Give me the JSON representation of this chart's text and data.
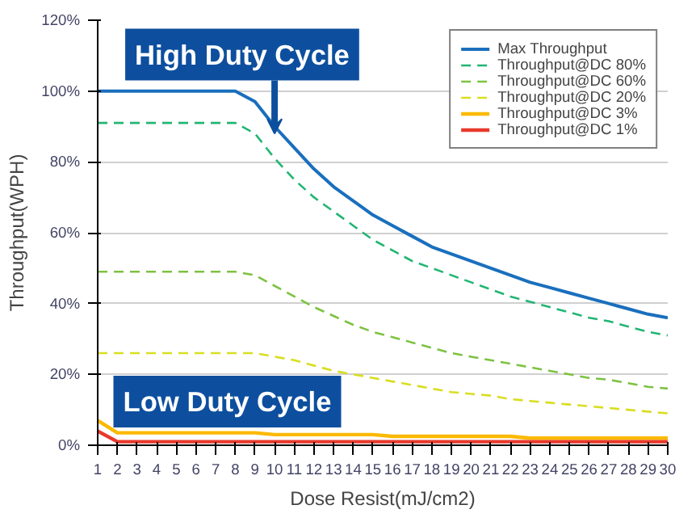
{
  "chart_data": {
    "type": "line",
    "xlabel": "Dose Resist(mJ/cm2)",
    "ylabel": "Throughput(WPH)",
    "x": [
      1,
      2,
      3,
      4,
      5,
      6,
      7,
      8,
      9,
      10,
      11,
      12,
      13,
      14,
      15,
      16,
      17,
      18,
      19,
      20,
      21,
      22,
      23,
      24,
      25,
      26,
      27,
      28,
      29,
      30
    ],
    "xlim": [
      1,
      30
    ],
    "xticks": [
      1,
      2,
      3,
      4,
      5,
      6,
      7,
      8,
      9,
      10,
      11,
      12,
      13,
      14,
      15,
      16,
      17,
      18,
      19,
      20,
      21,
      22,
      23,
      24,
      25,
      26,
      27,
      28,
      29,
      30
    ],
    "ylim": [
      0,
      120
    ],
    "yticks": [
      {
        "value": 0,
        "label": "0%"
      },
      {
        "value": 20,
        "label": "20%"
      },
      {
        "value": 40,
        "label": "40%"
      },
      {
        "value": 60,
        "label": "60%"
      },
      {
        "value": 80,
        "label": "80%"
      },
      {
        "value": 100,
        "label": "100%"
      },
      {
        "value": 120,
        "label": "120%"
      }
    ],
    "grid": "y",
    "legend": "top right",
    "marker": "none",
    "series": [
      {
        "name": "Max Throughput",
        "color": "#1a6fbd",
        "line_style": "solid",
        "values": [
          100,
          100,
          100,
          100,
          100,
          100,
          100,
          100,
          97,
          90,
          84,
          78,
          73,
          69,
          65,
          62,
          59,
          56,
          54,
          52,
          50,
          48,
          46,
          44.5,
          43,
          41.5,
          40,
          38.5,
          37,
          36
        ]
      },
      {
        "name": "Throughput@DC 80%",
        "color": "#22b573",
        "line_style": "dashed",
        "values": [
          91,
          91,
          91,
          91,
          91,
          91,
          91,
          91,
          88,
          81,
          75,
          70,
          66,
          62,
          58,
          55,
          52,
          50,
          48,
          46,
          44,
          42,
          40.5,
          39,
          37.5,
          36,
          35,
          33.5,
          32,
          31
        ]
      },
      {
        "name": "Throughput@DC 60%",
        "color": "#7dc242",
        "line_style": "dashed",
        "values": [
          49,
          49,
          49,
          49,
          49,
          49,
          49,
          49,
          48,
          45,
          42,
          39,
          36.5,
          34,
          32,
          30.5,
          29,
          27.5,
          26,
          25,
          24,
          23,
          22,
          21,
          20,
          19,
          18.5,
          17.5,
          16.5,
          16
        ]
      },
      {
        "name": "Throughput@DC 20%",
        "color": "#d8de1f",
        "line_style": "dashed",
        "values": [
          26,
          26,
          26,
          26,
          26,
          26,
          26,
          26,
          26,
          25,
          24,
          22.5,
          21,
          20,
          19,
          18,
          17,
          16,
          15,
          14.5,
          14,
          13,
          12.5,
          12,
          11.5,
          11,
          10.5,
          10,
          9.5,
          9
        ]
      },
      {
        "name": "Throughput@DC 3%",
        "color": "#fbb900",
        "line_style": "solid",
        "values": [
          7,
          3.5,
          3.5,
          3.5,
          3.5,
          3.5,
          3.5,
          3.5,
          3.5,
          3,
          3,
          3,
          3,
          3,
          3,
          2.5,
          2.5,
          2.5,
          2.5,
          2.5,
          2.5,
          2.5,
          2,
          2,
          2,
          2,
          2,
          2,
          2,
          2
        ]
      },
      {
        "name": "Throughput@DC 1%",
        "color": "#e8392b",
        "line_style": "solid",
        "values": [
          4,
          1,
          1,
          1,
          1,
          1,
          1,
          1,
          1,
          1,
          1,
          1,
          1,
          1,
          1,
          1,
          1,
          1,
          1,
          1,
          1,
          1,
          1,
          1,
          1,
          1,
          1,
          1,
          1,
          1
        ]
      }
    ],
    "annotations": [
      {
        "text": "High Duty Cycle",
        "x": 10,
        "y": 88
      },
      "Low Duty Cycle"
    ]
  }
}
